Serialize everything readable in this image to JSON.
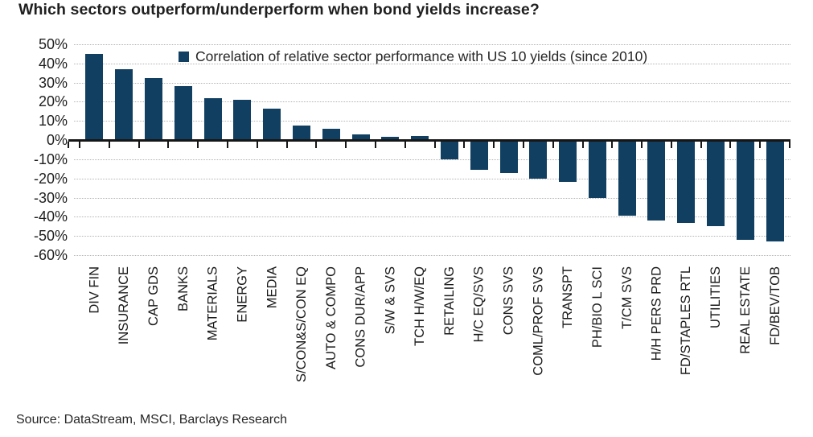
{
  "chart_data": {
    "type": "bar",
    "title": "Which sectors outperform/underperform when bond yields increase?",
    "legend": "Correlation of relative sector performance with US 10 yields (since 2010)",
    "legend_position": "top-center-inside",
    "source_note": "Source: DataStream, MSCI, Barclays Research",
    "categories": [
      "DIV FIN",
      "INSURANCE",
      "CAP GDS",
      "BANKS",
      "MATERIALS",
      "ENERGY",
      "MEDIA",
      "S/CON&S/CON EQ",
      "AUTO & COMPO",
      "CONS DUR/APP",
      "S/W & SVS",
      "TCH H/W/EQ",
      "RETAILING",
      "H/C EQ/SVS",
      "CONS SVS",
      "COML/PROF SVS",
      "TRANSPT",
      "PH/BIO L SCI",
      "T/CM SVS",
      "H/H PERS PRD",
      "FD/STAPLES RTL",
      "UTILITIES",
      "REAL ESTATE",
      "FD/BEV/TOB"
    ],
    "values": [
      45,
      37,
      32.5,
      28,
      22,
      21,
      16.5,
      7.5,
      6,
      3,
      1.5,
      2,
      -10,
      -15.5,
      -17,
      -20,
      -22,
      -30,
      -39.5,
      -42,
      -43,
      -45,
      -52,
      -53
    ],
    "y_unit": "%",
    "ylim": [
      -60,
      50
    ],
    "y_ticks": [
      50,
      40,
      30,
      20,
      10,
      0,
      -10,
      -20,
      -30,
      -40,
      -50,
      -60
    ],
    "y_tick_labels": [
      "50%",
      "40%",
      "30%",
      "20%",
      "10%",
      "0%",
      "-10%",
      "-20%",
      "-30%",
      "-40%",
      "-50%",
      "-60%"
    ],
    "grid": "horizontal-dotted",
    "bar_color": "#113F61",
    "axis_color": "#161616",
    "gridline_color": "#b4b4b4",
    "text_color": "#1f1f1f"
  }
}
